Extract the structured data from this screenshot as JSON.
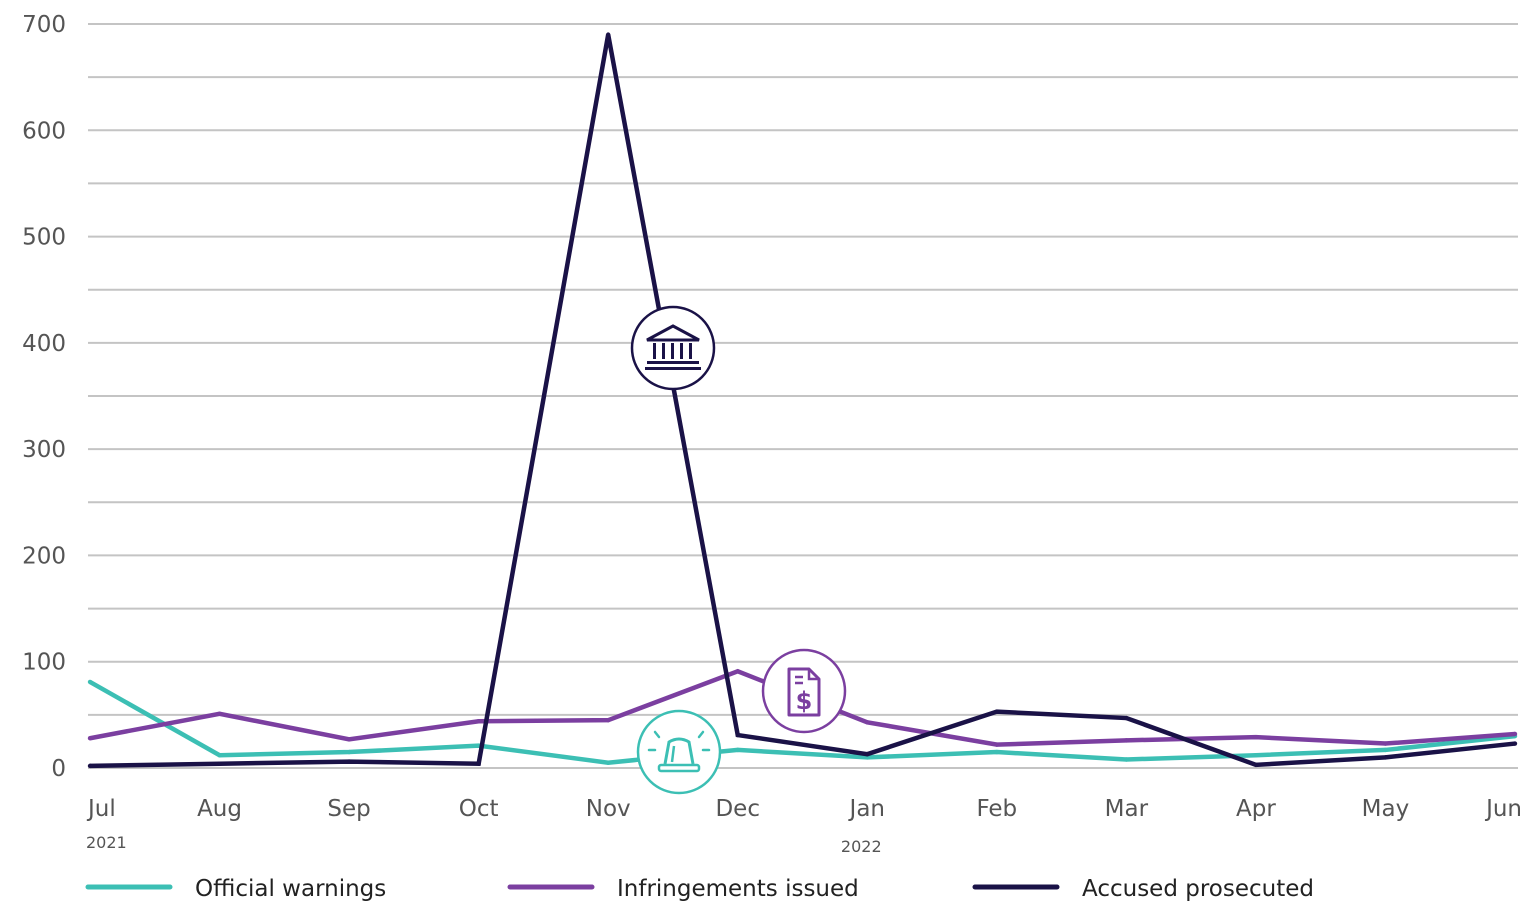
{
  "chart_data": {
    "type": "line",
    "title": "",
    "xlabel": "",
    "ylabel": "",
    "ylim": [
      0,
      700
    ],
    "yticks": [
      0,
      100,
      200,
      300,
      400,
      500,
      600,
      700
    ],
    "grid": true,
    "minor_grid_step": 50,
    "categories": [
      "Jul",
      "Aug",
      "Sep",
      "Oct",
      "Nov",
      "Dec",
      "Jan",
      "Feb",
      "Mar",
      "Apr",
      "May",
      "Jun"
    ],
    "year_labels": [
      {
        "at": "Jul",
        "text": "2021"
      },
      {
        "at": "Jan",
        "text": "2022"
      }
    ],
    "legend_position": "bottom",
    "series": [
      {
        "name": "Official warnings",
        "color": "#3cbfb4",
        "icon": "siren-icon",
        "values": [
          81,
          12,
          15,
          21,
          5,
          17,
          10,
          15,
          8,
          12,
          17,
          30
        ]
      },
      {
        "name": "Infringements issued",
        "color": "#7b3fa0",
        "icon": "invoice-dollar-icon",
        "values": [
          28,
          51,
          27,
          44,
          45,
          91,
          43,
          22,
          26,
          29,
          23,
          32
        ]
      },
      {
        "name": "Accused prosecuted",
        "color": "#1a1247",
        "icon": "courthouse-icon",
        "values": [
          2,
          4,
          6,
          4,
          690,
          31,
          13,
          53,
          47,
          3,
          10,
          23
        ]
      }
    ]
  }
}
